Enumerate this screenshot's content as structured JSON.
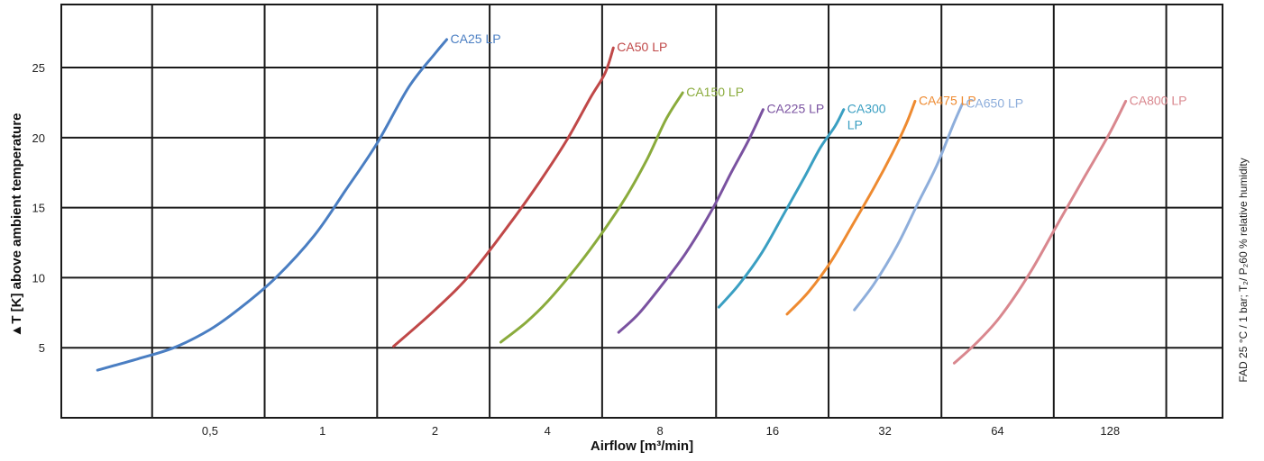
{
  "chart_data": {
    "type": "line",
    "xlabel": "Airflow [m³/min]",
    "ylabel": "▲T [K] above ambient temperature",
    "side_note": "FAD 25 °C / 1 bar; T₂/ P₂60 % relative humidity",
    "x_scale": "log2",
    "xlim": [
      0.2,
      256
    ],
    "ylim": [
      0,
      29.5
    ],
    "x_ticks": [
      {
        "value": 0.5,
        "label": "0,5"
      },
      {
        "value": 1,
        "label": "1"
      },
      {
        "value": 2,
        "label": "2"
      },
      {
        "value": 4,
        "label": "4"
      },
      {
        "value": 8,
        "label": "8"
      },
      {
        "value": 16,
        "label": "16"
      },
      {
        "value": 32,
        "label": "32"
      },
      {
        "value": 64,
        "label": "64"
      },
      {
        "value": 128,
        "label": "128"
      }
    ],
    "x_gridlines": [
      0.35,
      0.7,
      1.4,
      2.8,
      5.6,
      11.3,
      22.6,
      45.3,
      90.5,
      181
    ],
    "y_ticks": [
      {
        "value": 5,
        "label": "5"
      },
      {
        "value": 10,
        "label": "10"
      },
      {
        "value": 15,
        "label": "15"
      },
      {
        "value": 20,
        "label": "20"
      },
      {
        "value": 25,
        "label": "25"
      }
    ],
    "grid": true,
    "series": [
      {
        "name": "CA25 LP",
        "color": "#4a7ec2",
        "label_lines": [
          "CA25 LP"
        ],
        "x": [
          0.25,
          0.32,
          0.4,
          0.5,
          0.6,
          0.75,
          0.95,
          1.15,
          1.4,
          1.7,
          2.0,
          2.15
        ],
        "y": [
          3.4,
          4.2,
          5.0,
          6.3,
          7.8,
          10.0,
          13.0,
          16.2,
          19.6,
          23.6,
          26.0,
          27.0
        ]
      },
      {
        "name": "CA50 LP",
        "color": "#c04848",
        "label_lines": [
          "CA50 LP"
        ],
        "x": [
          1.55,
          2.0,
          2.5,
          3.2,
          3.8,
          4.5,
          5.2,
          5.7,
          6.0
        ],
        "y": [
          5.1,
          7.7,
          10.3,
          14.0,
          16.8,
          19.8,
          22.8,
          24.6,
          26.4
        ]
      },
      {
        "name": "CA150 LP",
        "color": "#8aab3c",
        "label_lines": [
          "CA150 LP"
        ],
        "x": [
          3.0,
          3.5,
          4.0,
          4.8,
          5.6,
          6.5,
          7.4,
          8.3,
          9.2
        ],
        "y": [
          5.4,
          6.8,
          8.3,
          10.8,
          13.2,
          15.8,
          18.5,
          21.3,
          23.2
        ]
      },
      {
        "name": "CA225 LP",
        "color": "#7a52a0",
        "label_lines": [
          "CA225 LP"
        ],
        "x": [
          6.2,
          7.0,
          8.0,
          9.4,
          11.0,
          12.4,
          13.8,
          15.1
        ],
        "y": [
          6.1,
          7.4,
          9.3,
          11.8,
          14.8,
          17.5,
          19.8,
          22.0
        ]
      },
      {
        "name": "CA300 LP",
        "color": "#3a9fc2",
        "label_lines": [
          "CA300",
          "LP"
        ],
        "x": [
          11.5,
          13.0,
          15.0,
          17.2,
          19.5,
          21.5,
          23.5,
          24.8
        ],
        "y": [
          7.9,
          9.5,
          11.8,
          14.6,
          17.2,
          19.3,
          20.8,
          22.0
        ]
      },
      {
        "name": "CA475 LP",
        "color": "#ee8a30",
        "label_lines": [
          "CA475 LP"
        ],
        "x": [
          17.5,
          20.0,
          23.0,
          26.5,
          30.0,
          33.5,
          36.5,
          38.5
        ],
        "y": [
          7.4,
          9.0,
          11.2,
          14.0,
          16.5,
          18.9,
          21.0,
          22.6
        ]
      },
      {
        "name": "CA650 LP",
        "color": "#8eaedb",
        "label_lines": [
          "CA650 LP"
        ],
        "x": [
          26.5,
          30.0,
          34.5,
          39.0,
          44.0,
          48.5,
          51.5
        ],
        "y": [
          7.7,
          9.6,
          12.3,
          15.2,
          18.0,
          20.8,
          22.4
        ]
      },
      {
        "name": "CA800 LP",
        "color": "#d9878e",
        "label_lines": [
          "CA800 LP"
        ],
        "x": [
          49.0,
          56.0,
          65.0,
          78.0,
          93.0,
          110.0,
          127.0,
          141.0
        ],
        "y": [
          3.9,
          5.3,
          7.2,
          10.3,
          13.9,
          17.3,
          20.2,
          22.6
        ]
      }
    ]
  }
}
